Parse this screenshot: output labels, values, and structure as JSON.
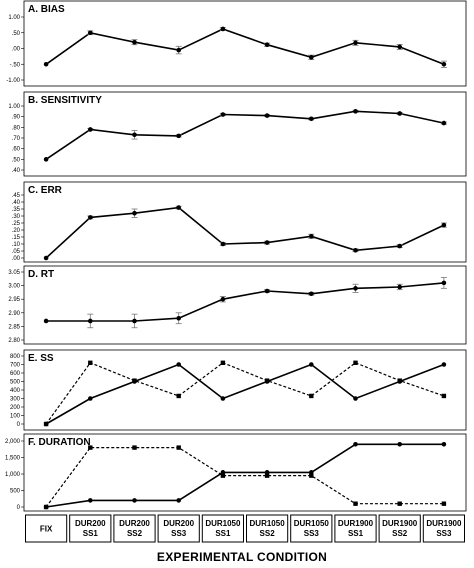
{
  "chart_data": {
    "type": "line",
    "xlabel": "EXPERIMENTAL CONDITION",
    "categories": [
      [
        "FIX"
      ],
      [
        "DUR200",
        "SS1"
      ],
      [
        "DUR200",
        "SS2"
      ],
      [
        "DUR200",
        "SS3"
      ],
      [
        "DUR1050",
        "SS1"
      ],
      [
        "DUR1050",
        "SS2"
      ],
      [
        "DUR1050",
        "SS3"
      ],
      [
        "DUR1900",
        "SS1"
      ],
      [
        "DUR1900",
        "SS2"
      ],
      [
        "DUR1900",
        "SS3"
      ]
    ],
    "panels": [
      {
        "title": "A. BIAS",
        "ylim": [
          -1.0,
          1.0
        ],
        "yticks": [
          "1.00",
          ".50",
          ".00",
          "-.50",
          "-1.00"
        ],
        "ytick_values": [
          1.0,
          0.5,
          0.0,
          -0.5,
          -1.0
        ],
        "series": [
          {
            "style": "solid",
            "values": [
              -0.5,
              0.5,
              0.2,
              -0.05,
              0.62,
              0.12,
              -0.28,
              0.18,
              0.05,
              -0.5
            ],
            "errors": [
              0,
              0.06,
              0.08,
              0.12,
              0.05,
              0.05,
              0.07,
              0.08,
              0.08,
              0.1
            ]
          }
        ]
      },
      {
        "title": "B. SENSITIVITY",
        "ylim": [
          0.4,
          1.0
        ],
        "yticks": [
          "1.00",
          ".90",
          ".80",
          ".70",
          ".60",
          ".50",
          ".40"
        ],
        "ytick_values": [
          1.0,
          0.9,
          0.8,
          0.7,
          0.6,
          0.5,
          0.4
        ],
        "series": [
          {
            "style": "solid",
            "values": [
              0.5,
              0.78,
              0.73,
              0.72,
              0.92,
              0.91,
              0.88,
              0.95,
              0.93,
              0.84
            ],
            "errors": [
              0,
              0.01,
              0.04,
              0.01,
              0.01,
              0.01,
              0.01,
              0.01,
              0.01,
              0.01
            ]
          }
        ]
      },
      {
        "title": "C. ERR",
        "ylim": [
          0.0,
          0.45
        ],
        "yticks": [
          ".45",
          ".40",
          ".35",
          ".30",
          ".25",
          ".20",
          ".15",
          ".10",
          ".05",
          ".00"
        ],
        "ytick_values": [
          0.45,
          0.4,
          0.35,
          0.3,
          0.25,
          0.2,
          0.15,
          0.1,
          0.05,
          0.0
        ],
        "series": [
          {
            "style": "solid",
            "values": [
              0.0,
              0.29,
              0.32,
              0.36,
              0.1,
              0.11,
              0.155,
              0.055,
              0.085,
              0.235
            ],
            "errors": [
              0,
              0.01,
              0.03,
              0.01,
              0.01,
              0.01,
              0.015,
              0.01,
              0.01,
              0.015
            ]
          }
        ]
      },
      {
        "title": "D. RT",
        "ylim": [
          2.8,
          3.05
        ],
        "yticks": [
          "3.05",
          "3.00",
          "2.95",
          "2.90",
          "2.85",
          "2.80"
        ],
        "ytick_values": [
          3.05,
          3.0,
          2.95,
          2.9,
          2.85,
          2.8
        ],
        "series": [
          {
            "style": "solid",
            "values": [
              2.87,
              2.87,
              2.87,
              2.88,
              2.95,
              2.98,
              2.97,
              2.99,
              2.995,
              3.01
            ],
            "errors": [
              0,
              0.025,
              0.025,
              0.02,
              0.01,
              0.005,
              0.005,
              0.015,
              0.01,
              0.02
            ]
          }
        ]
      },
      {
        "title": "E. SS",
        "ylim": [
          0,
          800
        ],
        "yticks": [
          "800",
          "700",
          "600",
          "500",
          "400",
          "300",
          "200",
          "100",
          "0"
        ],
        "ytick_values": [
          800,
          700,
          600,
          500,
          400,
          300,
          200,
          100,
          0
        ],
        "series": [
          {
            "style": "solid",
            "marker": "circle",
            "values": [
              0,
              300,
              500,
              700,
              300,
              500,
              700,
              300,
              500,
              700
            ]
          },
          {
            "style": "dashed",
            "marker": "square",
            "values": [
              0,
              720,
              510,
              330,
              720,
              510,
              330,
              720,
              510,
              330
            ]
          }
        ]
      },
      {
        "title": "F. DURATION",
        "ylim": [
          0,
          2000
        ],
        "yticks": [
          "2,000",
          "1,500",
          "1,000",
          "500",
          "0"
        ],
        "ytick_values": [
          2000,
          1500,
          1000,
          500,
          0
        ],
        "series": [
          {
            "style": "solid",
            "marker": "circle",
            "values": [
              0,
              200,
              200,
              200,
              1050,
              1050,
              1050,
              1900,
              1900,
              1900
            ]
          },
          {
            "style": "dashed",
            "marker": "square",
            "values": [
              0,
              1800,
              1800,
              1800,
              950,
              950,
              950,
              100,
              100,
              100
            ]
          }
        ]
      }
    ]
  }
}
